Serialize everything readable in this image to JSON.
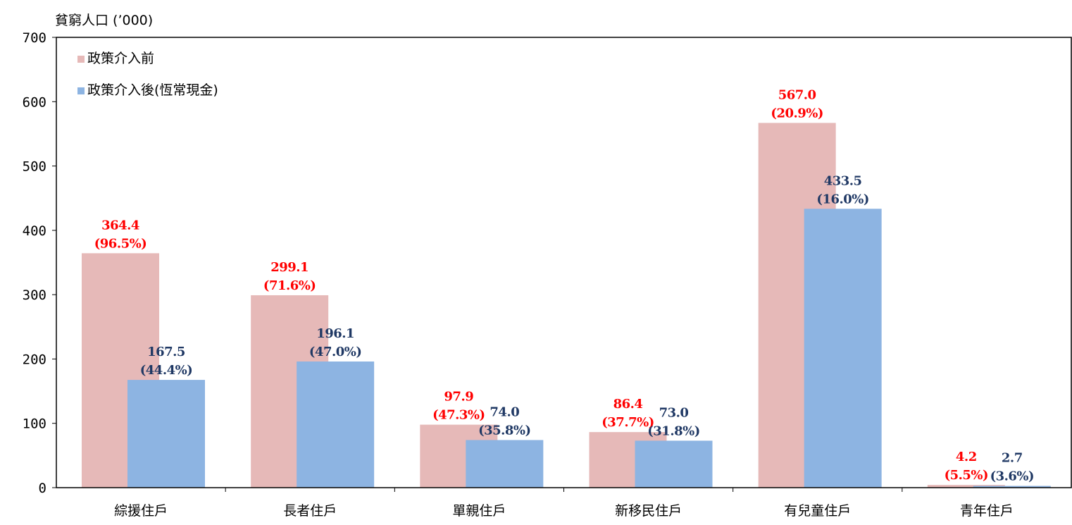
{
  "chart_data": {
    "type": "bar",
    "ylabel": "貧窮人口 (’000)",
    "ylim": [
      0,
      700
    ],
    "yticks": [
      0,
      100,
      200,
      300,
      400,
      500,
      600,
      700
    ],
    "grid": false,
    "legend_position": "top-left",
    "categories": [
      "綜援住戶",
      "長者住戶",
      "單親住戶",
      "新移民住戶",
      "有兒童住戶",
      "青年住戶"
    ],
    "series": [
      {
        "name": "政策介入前",
        "color": "#e6b9b8",
        "label_color": "#ff0000",
        "values": [
          364.4,
          299.1,
          97.9,
          86.4,
          567.0,
          4.2
        ],
        "value_labels": [
          "364.4",
          "299.1",
          "97.9",
          "86.4",
          "567.0",
          "4.2"
        ],
        "rate_labels": [
          "(96.5%)",
          "(71.6%)",
          "(47.3%)",
          "(37.7%)",
          "(20.9%)",
          "(5.5%)"
        ]
      },
      {
        "name": "政策介入後(恆常現金)",
        "color": "#8db4e2",
        "label_color": "#1f3864",
        "values": [
          167.5,
          196.1,
          74.0,
          73.0,
          433.5,
          2.7
        ],
        "value_labels": [
          "167.5",
          "196.1",
          "74.0",
          "73.0",
          "433.5",
          "2.7"
        ],
        "rate_labels": [
          "(44.4%)",
          "(47.0%)",
          "(35.8%)",
          "(31.8%)",
          "(16.0%)",
          "(3.6%)"
        ]
      }
    ]
  }
}
